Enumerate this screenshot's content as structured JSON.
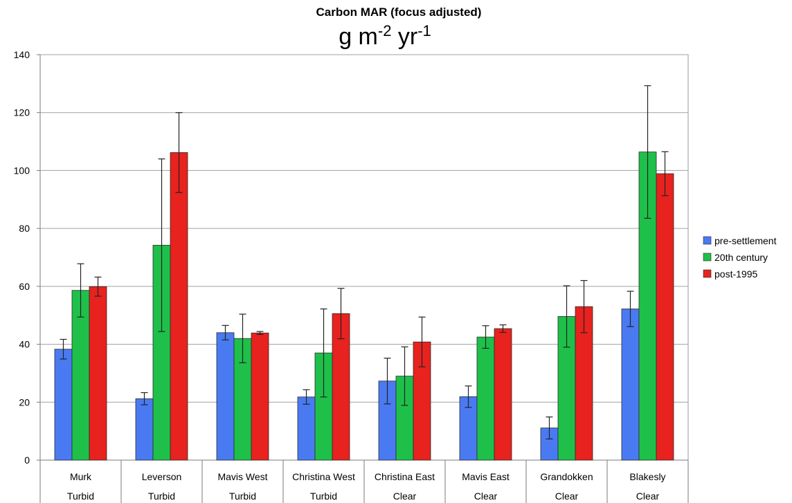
{
  "chart_data": {
    "type": "bar",
    "title": "Carbon MAR (focus adjusted)",
    "units": {
      "base": "g m",
      "exp1": "-2",
      "mid": " yr",
      "exp2": "-1"
    },
    "categories": [
      "Murk",
      "Leverson",
      "Mavis West",
      "Christina West",
      "Christina East",
      "Mavis East",
      "Grandokken",
      "Blakesly"
    ],
    "groups": [
      "Turbid",
      "Turbid",
      "Turbid",
      "Turbid",
      "Clear",
      "Clear",
      "Clear",
      "Clear"
    ],
    "series": [
      {
        "name": "pre-settlement",
        "color": "#4a7af2",
        "values": [
          38.3,
          21.2,
          44.0,
          21.8,
          27.3,
          21.9,
          11.1,
          52.2
        ],
        "error": [
          3.4,
          2.1,
          2.5,
          2.5,
          7.9,
          3.7,
          3.8,
          6.1
        ]
      },
      {
        "name": "20th century",
        "color": "#1ec04a",
        "values": [
          58.6,
          74.2,
          42.0,
          37.0,
          29.0,
          42.5,
          49.6,
          106.4
        ],
        "error": [
          9.2,
          29.8,
          8.4,
          15.2,
          10.1,
          3.9,
          10.6,
          22.9
        ]
      },
      {
        "name": "post-1995",
        "color": "#e8221e",
        "values": [
          59.9,
          106.2,
          43.9,
          50.6,
          40.8,
          45.4,
          53.0,
          98.9
        ],
        "error": [
          3.3,
          13.8,
          0.5,
          8.7,
          8.6,
          1.3,
          9.0,
          7.6
        ]
      }
    ],
    "ylim": [
      0,
      140
    ],
    "yticks": [
      0,
      20,
      40,
      60,
      80,
      100,
      120,
      140
    ],
    "grid": true,
    "legend_position": "right",
    "xlabel": "",
    "ylabel": ""
  }
}
